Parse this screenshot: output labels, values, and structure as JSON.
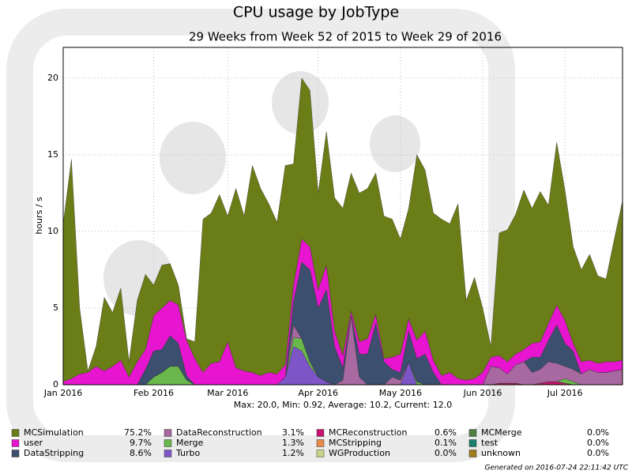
{
  "chart_data": {
    "type": "stacked-area",
    "title": "CPU usage by JobType",
    "subtitle": "29 Weeks from Week 52 of 2015 to Week 29 of 2016",
    "y_label": "hours / s",
    "stats": "Max: 20.0, Min: 0.92, Average: 10.2, Current: 12.0",
    "footer": "Generated on 2016-07-24 22:11:42 UTC",
    "grid": true,
    "ylim": [
      0,
      22
    ],
    "yticks": [
      0,
      5,
      10,
      15,
      20
    ],
    "categories": [
      "Jan 2016",
      null,
      null,
      null,
      null,
      null,
      null,
      null,
      null,
      null,
      null,
      "Feb 2016",
      null,
      null,
      null,
      null,
      null,
      null,
      null,
      null,
      "Mar 2016",
      null,
      null,
      null,
      null,
      null,
      null,
      null,
      null,
      null,
      null,
      "Apr 2016",
      null,
      null,
      null,
      null,
      null,
      null,
      null,
      null,
      null,
      "May 2016",
      null,
      null,
      null,
      null,
      null,
      null,
      null,
      null,
      null,
      "Jun 2016",
      null,
      null,
      null,
      null,
      null,
      null,
      null,
      null,
      null,
      "Jul 2016",
      null,
      null,
      null,
      null,
      null,
      null,
      null
    ],
    "series": [
      {
        "name": "MCSimulation",
        "share": "75.2%",
        "color": "#6b7d16",
        "values": [
          10.3,
          14.3,
          4.3,
          0.1,
          1.3,
          4.8,
          3.5,
          4.7,
          1.0,
          4.0,
          4.9,
          2.0,
          2.8,
          2.4,
          1.3,
          0.1,
          1.1,
          10.0,
          9.8,
          10.9,
          8.2,
          11.7,
          10.1,
          13.5,
          12.2,
          11.0,
          9.9,
          13.0,
          7.9,
          10.5,
          10.2,
          6.3,
          8.7,
          8.7,
          9.6,
          9.0,
          9.7,
          9.8,
          9.2,
          9.3,
          9.0,
          7.5,
          7.2,
          12.1,
          10.5,
          9.6,
          10.2,
          9.7,
          11.4,
          5.2,
          6.6,
          4.2,
          0.7,
          8.0,
          8.6,
          9.1,
          10.4,
          8.8,
          9.8,
          7.7,
          10.6,
          8.5,
          6.3,
          6.0,
          6.9,
          5.7,
          5.4,
          8.0,
          10.4
        ]
      },
      {
        "name": "user",
        "share": "9.7%",
        "color": "#e815d0",
        "values": [
          0.2,
          0.4,
          0.7,
          0.8,
          1.2,
          0.9,
          1.2,
          1.6,
          0.5,
          1.5,
          1.3,
          2.3,
          2.7,
          2.3,
          2.5,
          2.3,
          1.7,
          0.8,
          1.4,
          1.5,
          2.8,
          1.1,
          0.9,
          0.8,
          0.6,
          0.8,
          0.7,
          0.8,
          1.1,
          1.5,
          1.5,
          1.2,
          1.6,
          1.0,
          0.8,
          0.3,
          0.8,
          1.0,
          0.6,
          0.2,
          0.8,
          1.2,
          0.8,
          1.2,
          1.5,
          0.8,
          0.6,
          0.8,
          0.4,
          0.3,
          0.4,
          0.8,
          0.6,
          0.8,
          0.8,
          0.7,
          0.8,
          0.9,
          1.0,
          1.1,
          1.3,
          1.5,
          0.5,
          0.8,
          0.6,
          0.6,
          0.7,
          0.6,
          0.6
        ]
      },
      {
        "name": "DataStripping",
        "share": "8.6%",
        "color": "#3d4f6e",
        "values": [
          0,
          0,
          0,
          0,
          0,
          0,
          0,
          0,
          0,
          0,
          1.0,
          1.7,
          1.5,
          2.0,
          1.5,
          0.3,
          0,
          0,
          0,
          0,
          0,
          0,
          0,
          0,
          0,
          0,
          0,
          0,
          1.5,
          5.0,
          6.0,
          4.5,
          6.0,
          2.5,
          0.8,
          0,
          1.5,
          2.0,
          4.0,
          1.5,
          0.5,
          0.5,
          2.0,
          1.5,
          2.0,
          0.8,
          0,
          0,
          0,
          0,
          0,
          0,
          0,
          0,
          0,
          0,
          0,
          1.0,
          0.8,
          1.4,
          2.5,
          1.5,
          1.2,
          0,
          0,
          0,
          0,
          0,
          0
        ]
      },
      {
        "name": "DataReconstruction",
        "share": "3.1%",
        "color": "#a868a0",
        "values": [
          0,
          0,
          0,
          0,
          0,
          0,
          0,
          0,
          0,
          0,
          0,
          0,
          0,
          0,
          0,
          0,
          0,
          0,
          0,
          0,
          0,
          0,
          0,
          0,
          0,
          0,
          0,
          0,
          0.8,
          0,
          0,
          0,
          0,
          0,
          0.3,
          4.5,
          0.5,
          0,
          0,
          0,
          0.5,
          0.3,
          0,
          0,
          0,
          0,
          0,
          0,
          0,
          0,
          0,
          0,
          1.2,
          1.0,
          0.6,
          1.2,
          1.5,
          0.8,
          0.9,
          1.3,
          1.2,
          0.8,
          0.8,
          0.7,
          1.0,
          0.8,
          0.8,
          0.9,
          1.0
        ]
      },
      {
        "name": "Merge",
        "share": "1.3%",
        "color": "#6ab84c",
        "values": [
          0,
          0,
          0,
          0,
          0,
          0,
          0,
          0,
          0,
          0,
          0,
          0.5,
          0.8,
          1.2,
          1.2,
          0.3,
          0,
          0,
          0,
          0,
          0,
          0,
          0,
          0,
          0,
          0,
          0,
          0,
          0.6,
          0.8,
          0.3,
          0,
          0,
          0,
          0,
          0,
          0,
          0,
          0,
          0,
          0,
          0,
          0,
          0.2,
          0,
          0,
          0,
          0,
          0,
          0,
          0,
          0,
          0,
          0,
          0,
          0,
          0,
          0,
          0,
          0,
          0,
          0.3,
          0.2,
          0,
          0,
          0,
          0,
          0,
          0
        ]
      },
      {
        "name": "Turbo",
        "share": "1.2%",
        "color": "#7d55c7",
        "values": [
          0,
          0,
          0,
          0,
          0,
          0,
          0,
          0,
          0,
          0,
          0,
          0,
          0,
          0,
          0,
          0,
          0,
          0,
          0,
          0,
          0,
          0,
          0,
          0,
          0,
          0,
          0,
          0.5,
          2.5,
          2.2,
          1.2,
          0.5,
          0.2,
          0,
          0,
          0,
          0,
          0,
          0,
          0,
          0,
          0,
          1.5,
          0,
          0,
          0,
          0,
          0,
          0,
          0,
          0,
          0,
          0,
          0,
          0,
          0,
          0,
          0,
          0,
          0,
          0,
          0,
          0,
          0,
          0,
          0,
          0,
          0,
          0
        ]
      },
      {
        "name": "MCReconstruction",
        "share": "0.6%",
        "color": "#c7136f",
        "values": [
          0,
          0,
          0,
          0,
          0,
          0,
          0,
          0,
          0,
          0,
          0,
          0,
          0,
          0,
          0,
          0,
          0,
          0,
          0,
          0,
          0,
          0,
          0,
          0,
          0,
          0,
          0,
          0,
          0,
          0,
          0,
          0,
          0,
          0,
          0,
          0,
          0,
          0,
          0,
          0,
          0,
          0,
          0,
          0,
          0,
          0,
          0,
          0,
          0,
          0,
          0,
          0,
          0,
          0.1,
          0.1,
          0.1,
          0,
          0,
          0.1,
          0.2,
          0.2,
          0.1,
          0,
          0,
          0,
          0,
          0,
          0,
          0
        ]
      },
      {
        "name": "MCStripping",
        "share": "0.1%",
        "color": "#e88a4a",
        "values": [
          0,
          0,
          0,
          0,
          0,
          0,
          0,
          0,
          0,
          0,
          0,
          0,
          0,
          0,
          0,
          0,
          0,
          0,
          0,
          0,
          0,
          0,
          0,
          0,
          0,
          0,
          0,
          0,
          0,
          0,
          0,
          0,
          0,
          0,
          0,
          0,
          0,
          0,
          0,
          0,
          0,
          0,
          0,
          0,
          0,
          0,
          0,
          0,
          0,
          0,
          0,
          0,
          0,
          0,
          0,
          0,
          0,
          0,
          0,
          0,
          0,
          0,
          0,
          0,
          0,
          0,
          0,
          0,
          0
        ]
      },
      {
        "name": "WGProduction",
        "share": "0.0%",
        "color": "#c8d48a",
        "values": [
          0,
          0,
          0,
          0,
          0,
          0,
          0,
          0,
          0,
          0,
          0,
          0,
          0,
          0,
          0,
          0,
          0,
          0,
          0,
          0,
          0,
          0,
          0,
          0,
          0,
          0,
          0,
          0,
          0,
          0,
          0,
          0,
          0,
          0,
          0,
          0,
          0,
          0,
          0,
          0,
          0,
          0,
          0,
          0,
          0,
          0,
          0,
          0,
          0,
          0,
          0,
          0,
          0,
          0,
          0,
          0,
          0,
          0,
          0,
          0,
          0,
          0,
          0,
          0,
          0,
          0,
          0,
          0,
          0
        ]
      },
      {
        "name": "MCMerge",
        "share": "0.0%",
        "color": "#4f8042",
        "values": [
          0,
          0,
          0,
          0,
          0,
          0,
          0,
          0,
          0,
          0,
          0,
          0,
          0,
          0,
          0,
          0,
          0,
          0,
          0,
          0,
          0,
          0,
          0,
          0,
          0,
          0,
          0,
          0,
          0,
          0,
          0,
          0,
          0,
          0,
          0,
          0,
          0,
          0,
          0,
          0,
          0,
          0,
          0,
          0,
          0,
          0,
          0,
          0,
          0,
          0,
          0,
          0,
          0,
          0,
          0,
          0,
          0,
          0,
          0,
          0,
          0,
          0,
          0,
          0,
          0,
          0,
          0,
          0,
          0
        ]
      },
      {
        "name": "test",
        "share": "0.0%",
        "color": "#1a7f6e",
        "values": [
          0,
          0,
          0,
          0,
          0,
          0,
          0,
          0,
          0,
          0,
          0,
          0,
          0,
          0,
          0,
          0,
          0,
          0,
          0,
          0,
          0,
          0,
          0,
          0,
          0,
          0,
          0,
          0,
          0,
          0,
          0,
          0,
          0,
          0,
          0,
          0,
          0,
          0,
          0,
          0,
          0,
          0,
          0,
          0,
          0,
          0,
          0,
          0,
          0,
          0,
          0,
          0,
          0,
          0,
          0,
          0,
          0,
          0,
          0,
          0,
          0,
          0,
          0,
          0,
          0,
          0,
          0,
          0,
          0
        ]
      },
      {
        "name": "unknown",
        "share": "0.0%",
        "color": "#a07c1a",
        "values": [
          0,
          0,
          0,
          0,
          0,
          0,
          0,
          0,
          0,
          0,
          0,
          0,
          0,
          0,
          0,
          0,
          0,
          0,
          0,
          0,
          0,
          0,
          0,
          0,
          0,
          0,
          0,
          0,
          0,
          0,
          0,
          0,
          0,
          0,
          0,
          0,
          0,
          0,
          0,
          0,
          0,
          0,
          0,
          0,
          0,
          0,
          0,
          0,
          0,
          0,
          0,
          0,
          0,
          0,
          0,
          0,
          0,
          0,
          0,
          0,
          0,
          0,
          0,
          0,
          0,
          0,
          0,
          0,
          0
        ]
      }
    ]
  }
}
